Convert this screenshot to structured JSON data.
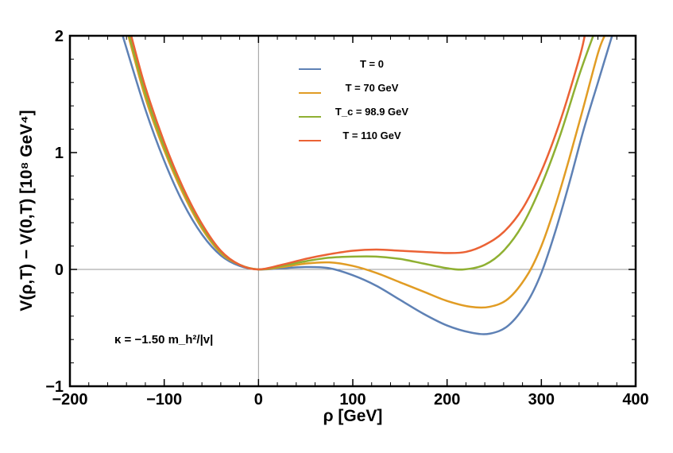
{
  "chart_data": {
    "type": "line",
    "xlabel": "ρ [GeV]",
    "ylabel": "V(ρ,T) − V(0,T) [10⁸ GeV⁴]",
    "xlim": [
      -200,
      400
    ],
    "ylim": [
      -1,
      2
    ],
    "xticks": [
      -200,
      -100,
      0,
      100,
      200,
      300,
      400
    ],
    "xtick_labels": [
      "−200",
      "−100",
      "0",
      "100",
      "200",
      "300",
      "400"
    ],
    "yticks": [
      -1,
      0,
      1,
      2
    ],
    "ytick_labels": [
      "−1",
      "0",
      "1",
      "2"
    ],
    "grid": false,
    "legend_position": "top-center",
    "annotation": "κ = −1.50 m_h²/|v|",
    "series": [
      {
        "name": "T = 0",
        "color": "#5E81B5",
        "x": [
          -144,
          -120,
          -100,
          -80,
          -60,
          -40,
          -20,
          0,
          25,
          50,
          75,
          100,
          125,
          150,
          175,
          200,
          225,
          245,
          265,
          285,
          300,
          315,
          330,
          345,
          360,
          375
        ],
        "y": [
          2.0,
          1.37,
          0.93,
          0.57,
          0.3,
          0.12,
          0.03,
          0.0,
          0.01,
          0.02,
          0.01,
          -0.05,
          -0.14,
          -0.26,
          -0.38,
          -0.48,
          -0.54,
          -0.55,
          -0.48,
          -0.28,
          -0.03,
          0.33,
          0.75,
          1.2,
          1.6,
          2.0
        ]
      },
      {
        "name": "T = 70 GeV",
        "color": "#E19C24",
        "x": [
          -138,
          -120,
          -100,
          -80,
          -60,
          -40,
          -20,
          0,
          25,
          50,
          75,
          100,
          125,
          150,
          175,
          200,
          225,
          245,
          265,
          285,
          300,
          315,
          330,
          345,
          360,
          367
        ],
        "y": [
          2.0,
          1.47,
          1.02,
          0.65,
          0.35,
          0.14,
          0.04,
          0.0,
          0.02,
          0.05,
          0.06,
          0.03,
          -0.03,
          -0.11,
          -0.19,
          -0.27,
          -0.32,
          -0.32,
          -0.25,
          -0.05,
          0.2,
          0.55,
          0.96,
          1.4,
          1.85,
          2.0
        ]
      },
      {
        "name": "T_c = 98.9 GeV",
        "color": "#8FB032",
        "x": [
          -137,
          -120,
          -100,
          -80,
          -60,
          -40,
          -20,
          0,
          25,
          50,
          75,
          100,
          125,
          150,
          175,
          200,
          218,
          240,
          260,
          280,
          300,
          320,
          340,
          355
        ],
        "y": [
          2.0,
          1.51,
          1.05,
          0.68,
          0.37,
          0.15,
          0.04,
          0.0,
          0.03,
          0.07,
          0.1,
          0.11,
          0.11,
          0.09,
          0.05,
          0.01,
          0.0,
          0.04,
          0.16,
          0.38,
          0.72,
          1.15,
          1.66,
          2.0
        ]
      },
      {
        "name": "T = 110 GeV",
        "color": "#EB6235",
        "x": [
          -135,
          -120,
          -100,
          -80,
          -60,
          -40,
          -20,
          0,
          25,
          50,
          75,
          100,
          125,
          150,
          175,
          200,
          220,
          240,
          260,
          280,
          300,
          320,
          340,
          346
        ],
        "y": [
          2.0,
          1.56,
          1.09,
          0.7,
          0.39,
          0.16,
          0.04,
          0.0,
          0.04,
          0.09,
          0.13,
          0.16,
          0.17,
          0.16,
          0.15,
          0.14,
          0.15,
          0.21,
          0.32,
          0.52,
          0.84,
          1.27,
          1.8,
          2.0
        ]
      }
    ]
  }
}
